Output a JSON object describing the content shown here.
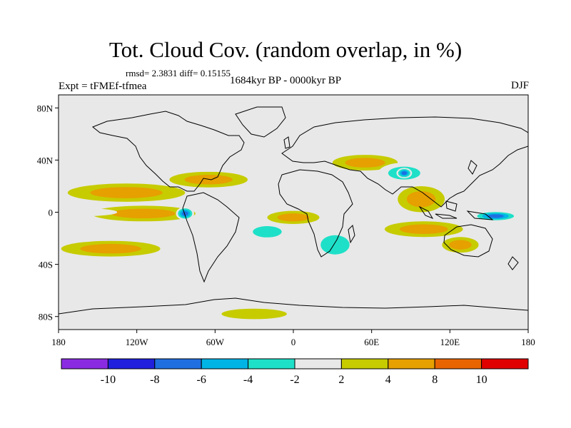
{
  "title": "Tot. Cloud Cov. (random overlap, in %)",
  "stats": "rmsd= 2.3831 diff= 0.15155",
  "experiment": "Expt = tFMEf-tfmea",
  "period": "1684kyr BP - 0000kyr BP",
  "season": "DJF",
  "colors": {
    "land_background": "#e8e8e8",
    "coastline": "#000000",
    "bins": [
      "#8a2be2",
      "#2020dd",
      "#1f6fe0",
      "#00b4e6",
      "#1ee0c8",
      "#e8e8e8",
      "#c6cc00",
      "#e6a000",
      "#e86400",
      "#e00000"
    ]
  },
  "chart_data": {
    "type": "heatmap",
    "title": "Tot. Cloud Cov. (random overlap, in %)",
    "projection": "cylindrical equidistant",
    "xlim": [
      -180,
      180
    ],
    "ylim": [
      -90,
      90
    ],
    "x_ticks": [
      {
        "value": -180,
        "label": "180"
      },
      {
        "value": -120,
        "label": "120W"
      },
      {
        "value": -60,
        "label": "60W"
      },
      {
        "value": 0,
        "label": "0"
      },
      {
        "value": 60,
        "label": "60E"
      },
      {
        "value": 120,
        "label": "120E"
      },
      {
        "value": 180,
        "label": "180"
      }
    ],
    "y_ticks": [
      {
        "value": 80,
        "label": "80N"
      },
      {
        "value": 40,
        "label": "40N"
      },
      {
        "value": 0,
        "label": "0"
      },
      {
        "value": -40,
        "label": "40S"
      },
      {
        "value": -80,
        "label": "80S"
      }
    ],
    "contour_levels": [
      -10,
      -8,
      -6,
      -4,
      -2,
      2,
      4,
      8,
      10
    ],
    "colorbar_labels": [
      "-10",
      "-8",
      "-6",
      "-4",
      "-2",
      "2",
      "4",
      "8",
      "10"
    ],
    "features": [
      {
        "name": "E Pacific equatorial max",
        "lon": -112,
        "lat": -1,
        "rx": 26,
        "ry": 3.5,
        "value": 12
      },
      {
        "name": "E Pacific equatorial ring",
        "lon": -115,
        "lat": -1,
        "rx": 40,
        "ry": 6,
        "value": 6
      },
      {
        "name": "E Pacific west negative",
        "lon": -83,
        "lat": -1,
        "rx": 7,
        "ry": 5,
        "value": -9
      },
      {
        "name": "E Pacific eq negative band",
        "lon": -160,
        "lat": 0,
        "rx": 25,
        "ry": 3,
        "value": -3
      },
      {
        "name": "Pacific ITCZ north",
        "lon": -128,
        "lat": 15,
        "rx": 45,
        "ry": 7,
        "value": 5
      },
      {
        "name": "Gulf of Mexico",
        "lon": -65,
        "lat": 25,
        "rx": 30,
        "ry": 6,
        "value": 6
      },
      {
        "name": "S Pacific band",
        "lon": -140,
        "lat": -28,
        "rx": 38,
        "ry": 6,
        "value": 6
      },
      {
        "name": "S Pacific teal band",
        "lon": -140,
        "lat": -15,
        "rx": 45,
        "ry": 4,
        "value": -3
      },
      {
        "name": "S Atlantic positive",
        "lon": 0,
        "lat": -4,
        "rx": 20,
        "ry": 5,
        "value": 6
      },
      {
        "name": "S Atlantic negative",
        "lon": -20,
        "lat": -15,
        "rx": 18,
        "ry": 7,
        "value": -4
      },
      {
        "name": "Africa negative",
        "lon": 32,
        "lat": -25,
        "rx": 18,
        "ry": 12,
        "value": -4
      },
      {
        "name": "Indian Ocean south",
        "lon": 100,
        "lat": -13,
        "rx": 30,
        "ry": 6,
        "value": 7
      },
      {
        "name": "SE Asia max",
        "lon": 90,
        "lat": 13,
        "rx": 8,
        "ry": 5,
        "value": 11
      },
      {
        "name": "SE Asia positive",
        "lon": 98,
        "lat": 10,
        "rx": 18,
        "ry": 10,
        "value": 5
      },
      {
        "name": "W Pacific negative",
        "lon": 155,
        "lat": -3,
        "rx": 18,
        "ry": 4,
        "value": -8
      },
      {
        "name": "Middle East positive",
        "lon": 55,
        "lat": 38,
        "rx": 25,
        "ry": 6,
        "value": 6
      },
      {
        "name": "Central Asia negative",
        "lon": 85,
        "lat": 30,
        "rx": 20,
        "ry": 8,
        "value": -5
      },
      {
        "name": "Himalaya max negative",
        "lon": 85,
        "lat": 30,
        "rx": 6,
        "ry": 4,
        "value": -9
      },
      {
        "name": "Australia positive",
        "lon": 128,
        "lat": -25,
        "rx": 14,
        "ry": 6,
        "value": 5
      },
      {
        "name": "Southern Ocean negative",
        "lon": 75,
        "lat": -32,
        "rx": 25,
        "ry": 5,
        "value": -3
      },
      {
        "name": "Antarctic coast positive",
        "lon": -30,
        "lat": -78,
        "rx": 25,
        "ry": 4,
        "value": 3
      },
      {
        "name": "Antarctic coast negative",
        "lon": 115,
        "lat": -72,
        "rx": 25,
        "ry": 3,
        "value": -3
      }
    ]
  }
}
